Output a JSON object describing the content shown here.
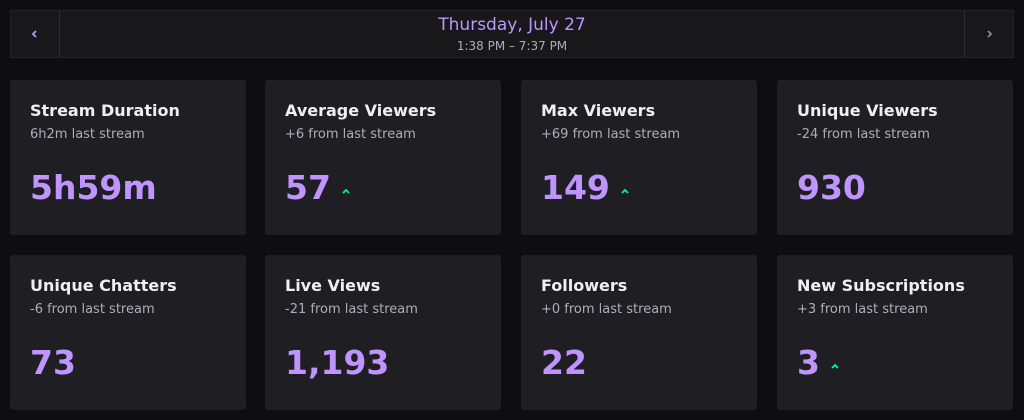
{
  "header": {
    "date": "Thursday, July 27",
    "time_range": "1:38 PM – 7:37 PM"
  },
  "cards": [
    {
      "title": "Stream Duration",
      "subtitle": "6h2m last stream",
      "value": "5h59m"
    },
    {
      "title": "Average Viewers",
      "subtitle": "+6 from last stream",
      "value": "57",
      "trend": "up"
    },
    {
      "title": "Max Viewers",
      "subtitle": "+69 from last stream",
      "value": "149",
      "trend": "up"
    },
    {
      "title": "Unique Viewers",
      "subtitle": "-24 from last stream",
      "value": "930"
    },
    {
      "title": "Unique Chatters",
      "subtitle": "-6 from last stream",
      "value": "73"
    },
    {
      "title": "Live Views",
      "subtitle": "-21 from last stream",
      "value": "1,193"
    },
    {
      "title": "Followers",
      "subtitle": "+0 from last stream",
      "value": "22"
    },
    {
      "title": "New Subscriptions",
      "subtitle": "+3 from last stream",
      "value": "3",
      "trend": "up"
    }
  ]
}
